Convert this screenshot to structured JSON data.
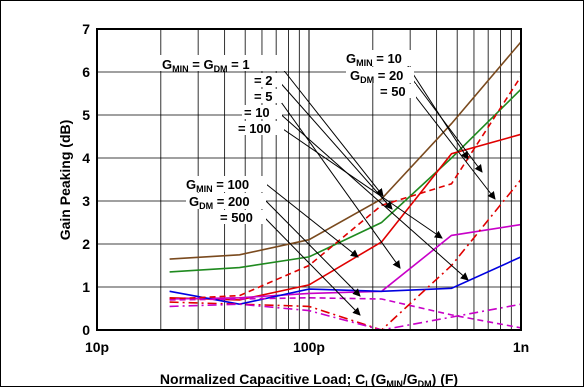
{
  "chart_data": {
    "type": "line",
    "x_scale": "log",
    "xlim": [
      "10p",
      "1n"
    ],
    "ylim": [
      0,
      7
    ],
    "grid": true,
    "xlabel": {
      "main": "Normalized Capacitive Load; C",
      "l_sub": "L",
      "mid1": "(G",
      "min_sub": "MIN",
      "slash": "/G",
      "dm_sub": "DM",
      "end": ") (F)"
    },
    "ylabel": "Gain Peaking (dB)",
    "x_ticks": [
      {
        "label": "10p",
        "value": 1e-11
      },
      {
        "label": "100p",
        "value": 1e-10
      },
      {
        "label": "1n",
        "value": 1e-09
      }
    ],
    "y_ticks": [
      "0",
      "1",
      "2",
      "3",
      "4",
      "5",
      "6",
      "7"
    ],
    "series": [
      {
        "color": "#7a4a1e",
        "dash": "solid",
        "x": [
          2.2e-11,
          4.7e-11,
          1e-10,
          2.2e-10,
          4.7e-10,
          1e-09
        ],
        "y": [
          1.65,
          1.75,
          2.1,
          3.05,
          4.8,
          6.7
        ]
      },
      {
        "color": "#1f8a1f",
        "dash": "solid",
        "x": [
          2.2e-11,
          4.7e-11,
          1e-10,
          2.2e-10,
          4.7e-10,
          1e-09
        ],
        "y": [
          1.35,
          1.45,
          1.7,
          2.5,
          4.0,
          5.6
        ]
      },
      {
        "color": "#e00000",
        "dash": "solid",
        "x": [
          2.2e-11,
          4.7e-11,
          1e-10,
          2.2e-10,
          4.7e-10,
          1e-09
        ],
        "y": [
          0.75,
          0.7,
          1.05,
          2.05,
          4.1,
          4.55
        ]
      },
      {
        "color": "#c800c8",
        "dash": "solid",
        "x": [
          2.2e-11,
          4.7e-11,
          1e-10,
          2.2e-10,
          4.7e-10,
          1e-09
        ],
        "y": [
          0.72,
          0.75,
          0.85,
          0.9,
          2.2,
          2.45
        ]
      },
      {
        "color": "#0000e0",
        "dash": "solid",
        "x": [
          2.2e-11,
          4.7e-11,
          1e-10,
          2.2e-10,
          4.7e-10,
          1e-09
        ],
        "y": [
          0.9,
          0.6,
          0.95,
          0.9,
          0.97,
          1.7
        ]
      },
      {
        "color": "#e00000",
        "dash": "dash",
        "x": [
          2.2e-11,
          4.7e-11,
          1e-10,
          2.2e-10,
          4.7e-10,
          1e-09
        ],
        "y": [
          0.72,
          0.8,
          1.5,
          2.9,
          3.4,
          5.9
        ]
      },
      {
        "color": "#c800c8",
        "dash": "dash",
        "x": [
          2.2e-11,
          4.7e-11,
          1e-10,
          2.2e-10,
          4.7e-10,
          1e-09
        ],
        "y": [
          0.7,
          0.72,
          0.75,
          0.72,
          0.35,
          0.05
        ]
      },
      {
        "color": "#e00000",
        "dash": "dashdot",
        "x": [
          2.2e-11,
          4.7e-11,
          1e-10,
          2.2e-10,
          4.7e-10,
          1e-09
        ],
        "y": [
          0.65,
          0.6,
          0.55,
          0.0,
          1.5,
          3.5
        ]
      },
      {
        "color": "#c800c8",
        "dash": "dashdot",
        "x": [
          2.2e-11,
          4.7e-11,
          1e-10,
          2.2e-10,
          4.7e-10,
          1e-09
        ],
        "y": [
          0.55,
          0.6,
          0.45,
          0.0,
          0.3,
          0.6
        ]
      }
    ],
    "annotations": {
      "group1": {
        "line1": {
          "g": "G",
          "min": "MIN",
          "eq": " = G",
          "dm": "DM",
          "val": " = 1"
        },
        "others": [
          "= 2",
          "= 5",
          "= 10",
          "= 100"
        ]
      },
      "group2": {
        "l1": {
          "g": "G",
          "min": "MIN",
          "val": " = 10"
        },
        "l2": {
          "g": "G",
          "dm": "DM",
          "val": " = 20"
        },
        "l3": "= 50"
      },
      "group3": {
        "l1": {
          "g": "G",
          "min": "MIN",
          "val": " = 100"
        },
        "l2": {
          "g": "G",
          "dm": "DM",
          "val": " = 200"
        },
        "l3": "= 500"
      }
    }
  }
}
